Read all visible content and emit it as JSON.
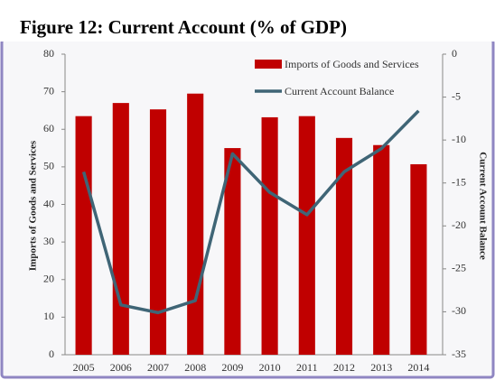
{
  "chart_data": {
    "type": "bar_line",
    "title": "Figure 12: Current Account (% of GDP)",
    "y_label": "Imports of Goods and Services",
    "y2_label": "Current Account Balance",
    "categories": [
      "2005",
      "2006",
      "2007",
      "2008",
      "2009",
      "2010",
      "2011",
      "2012",
      "2013",
      "2014"
    ],
    "series": [
      {
        "name": "Imports of Goods and Services",
        "color": "#c00000",
        "type": "bar",
        "values": [
          63.5,
          67,
          65.3,
          69.5,
          55,
          63.2,
          63.5,
          57.7,
          55.8,
          50.7
        ]
      },
      {
        "name": "Current Account Balance",
        "color": "#3f6576",
        "type": "line",
        "axis": "y2",
        "values": [
          -13.7,
          -29.2,
          -30.1,
          -28.7,
          -11.6,
          -16.1,
          -18.7,
          -13.7,
          -11.0,
          -6.6
        ]
      }
    ],
    "ylim": [
      0,
      80
    ],
    "yticks": [
      0,
      10,
      20,
      30,
      40,
      50,
      60,
      70,
      80
    ],
    "y2lim": [
      -35,
      0
    ],
    "y2ticks": [
      -35,
      -30,
      -25,
      -20,
      -15,
      -10,
      -5,
      0
    ],
    "legend": "top-right"
  }
}
